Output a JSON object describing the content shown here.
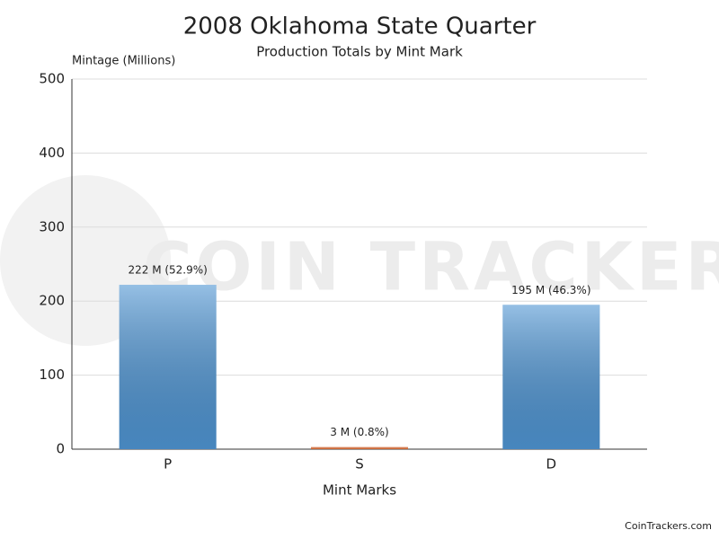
{
  "chart_data": {
    "type": "bar",
    "title": "2008 Oklahoma State Quarter",
    "subtitle": "Production Totals by Mint Mark",
    "y_label": "Mintage (Millions)",
    "x_label": "Mint Marks",
    "categories": [
      "P",
      "S",
      "D"
    ],
    "values": [
      222,
      3,
      195
    ],
    "value_labels": [
      "222 M (52.9%)",
      "3 M (0.8%)",
      "195 M (46.3%)"
    ],
    "colors": [
      "#4f95d3",
      "#e8743b",
      "#4f95d3"
    ],
    "ylim": [
      0,
      500
    ],
    "yticks": [
      0,
      100,
      200,
      300,
      400,
      500
    ],
    "grid": true,
    "watermark": "COIN TRACKERS",
    "source": "CoinTrackers.com"
  }
}
